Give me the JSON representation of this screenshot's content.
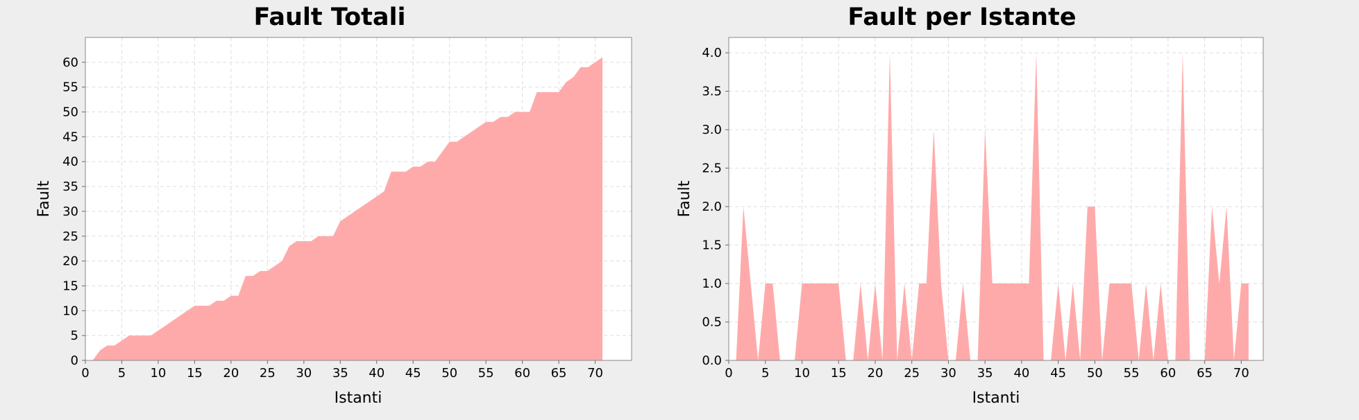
{
  "chart_data": [
    {
      "type": "area",
      "title": "Fault Totali",
      "xlabel": "Istanti",
      "ylabel": "Fault",
      "xlim": [
        0,
        75
      ],
      "ylim": [
        0,
        65
      ],
      "xticks": [
        0,
        5,
        10,
        15,
        20,
        25,
        30,
        35,
        40,
        45,
        50,
        55,
        60,
        65,
        70
      ],
      "yticks": [
        0,
        5,
        10,
        15,
        20,
        25,
        30,
        35,
        40,
        45,
        50,
        55,
        60
      ],
      "grid": true,
      "legend": "none",
      "color": "#ffaaaa",
      "series": [
        {
          "x": [
            0,
            1,
            2,
            3,
            4,
            5,
            6,
            7,
            8,
            9,
            10,
            11,
            12,
            13,
            14,
            15,
            16,
            17,
            18,
            19,
            20,
            21,
            22,
            23,
            24,
            25,
            26,
            27,
            28,
            29,
            30,
            31,
            32,
            33,
            34,
            35,
            36,
            37,
            38,
            39,
            40,
            41,
            42,
            43,
            44,
            45,
            46,
            47,
            48,
            49,
            50,
            51,
            52,
            53,
            54,
            55,
            56,
            57,
            58,
            59,
            60,
            61,
            62,
            63,
            64,
            65,
            66,
            67,
            68,
            69,
            70,
            71
          ],
          "y": [
            0,
            0,
            2,
            3,
            3,
            4,
            5,
            5,
            5,
            5,
            6,
            7,
            8,
            9,
            10,
            11,
            11,
            11,
            12,
            12,
            13,
            13,
            17,
            17,
            18,
            18,
            19,
            20,
            23,
            24,
            24,
            24,
            25,
            25,
            25,
            28,
            29,
            30,
            31,
            32,
            33,
            34,
            38,
            38,
            38,
            39,
            39,
            40,
            40,
            42,
            44,
            44,
            45,
            46,
            47,
            48,
            48,
            49,
            49,
            50,
            50,
            50,
            54,
            54,
            54,
            54,
            56,
            57,
            59,
            59,
            60,
            61
          ]
        }
      ]
    },
    {
      "type": "area",
      "title": "Fault per Istante",
      "xlabel": "Istanti",
      "ylabel": "Fault",
      "xlim": [
        0,
        73
      ],
      "ylim": [
        0,
        4.2
      ],
      "xticks": [
        0,
        5,
        10,
        15,
        20,
        25,
        30,
        35,
        40,
        45,
        50,
        55,
        60,
        65,
        70
      ],
      "yticks": [
        "0.0",
        "0.5",
        "1.0",
        "1.5",
        "2.0",
        "2.5",
        "3.0",
        "3.5",
        "4.0"
      ],
      "grid": true,
      "legend": "none",
      "color": "#ffaaaa",
      "series": [
        {
          "x": [
            0,
            1,
            2,
            3,
            4,
            5,
            6,
            7,
            8,
            9,
            10,
            11,
            12,
            13,
            14,
            15,
            16,
            17,
            18,
            19,
            20,
            21,
            22,
            23,
            24,
            25,
            26,
            27,
            28,
            29,
            30,
            31,
            32,
            33,
            34,
            35,
            36,
            37,
            38,
            39,
            40,
            41,
            42,
            43,
            44,
            45,
            46,
            47,
            48,
            49,
            50,
            51,
            52,
            53,
            54,
            55,
            56,
            57,
            58,
            59,
            60,
            61,
            62,
            63,
            64,
            65,
            66,
            67,
            68,
            69,
            70,
            71
          ],
          "y": [
            0,
            0,
            2,
            1,
            0,
            1,
            1,
            0,
            0,
            0,
            1,
            1,
            1,
            1,
            1,
            1,
            0,
            0,
            1,
            0,
            1,
            0,
            4,
            0,
            1,
            0,
            1,
            1,
            3,
            1,
            0,
            0,
            1,
            0,
            0,
            3,
            1,
            1,
            1,
            1,
            1,
            1,
            4,
            0,
            0,
            1,
            0,
            1,
            0,
            2,
            2,
            0,
            1,
            1,
            1,
            1,
            0,
            1,
            0,
            1,
            0,
            0,
            4,
            0,
            0,
            0,
            2,
            1,
            2,
            0,
            1,
            1
          ]
        }
      ]
    }
  ]
}
